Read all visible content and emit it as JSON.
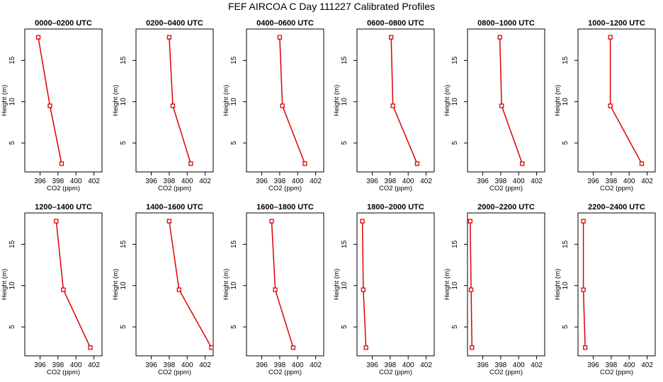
{
  "chart_data": {
    "type": "line",
    "title": "FEF AIRCOA C  Day 111227  Calibrated Profiles",
    "xlabel": "CO2 (ppm)",
    "ylabel": "Height (m)",
    "xlim": [
      394.3,
      402.9
    ],
    "ylim": [
      1.5,
      18.8
    ],
    "xticks": [
      396,
      398,
      400,
      402
    ],
    "yticks": [
      5,
      10,
      15
    ],
    "heights": [
      2.5,
      9.5,
      17.8
    ],
    "line_color": "#dd0000",
    "panels": [
      {
        "title": "0000–0200 UTC",
        "x": [
          398.4,
          397.1,
          395.8
        ]
      },
      {
        "title": "0200–0400 UTC",
        "x": [
          400.4,
          398.4,
          398.0
        ]
      },
      {
        "title": "0400–0600 UTC",
        "x": [
          400.8,
          398.3,
          398.0
        ]
      },
      {
        "title": "0600–0800 UTC",
        "x": [
          401.0,
          398.3,
          398.1
        ]
      },
      {
        "title": "0800–1000 UTC",
        "x": [
          400.4,
          398.1,
          397.9
        ]
      },
      {
        "title": "1000–1200 UTC",
        "x": [
          401.4,
          397.9,
          397.9
        ]
      },
      {
        "title": "1200–1400 UTC",
        "x": [
          401.6,
          398.6,
          397.8
        ]
      },
      {
        "title": "1400–1600 UTC",
        "x": [
          402.7,
          399.1,
          398.0
        ]
      },
      {
        "title": "1600–1800 UTC",
        "x": [
          399.5,
          397.5,
          397.1
        ]
      },
      {
        "title": "1800–2000 UTC",
        "x": [
          395.3,
          395.0,
          394.9
        ]
      },
      {
        "title": "2000–2200 UTC",
        "x": [
          394.8,
          394.7,
          394.6
        ]
      },
      {
        "title": "2200–2400 UTC",
        "x": [
          395.1,
          394.9,
          394.9
        ]
      }
    ]
  }
}
